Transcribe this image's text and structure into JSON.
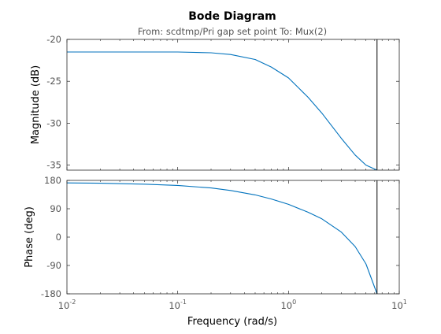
{
  "chart_data": {
    "type": "line",
    "title": "Bode Diagram",
    "subtitle": "From: scdtmp/Pri gap set point  To: Mux(2)",
    "xlabel": "Frequency  (rad/s)",
    "x_scale": "log",
    "xlim": [
      0.01,
      10
    ],
    "x_ticks": [
      {
        "base": "10",
        "exp": "-2",
        "value": 0.01
      },
      {
        "base": "10",
        "exp": "-1",
        "value": 0.1
      },
      {
        "base": "10",
        "exp": "0",
        "value": 1
      },
      {
        "base": "10",
        "exp": "1",
        "value": 10
      }
    ],
    "marker_line_x": 6.3,
    "line_color": "#0072bd",
    "axis_color": "#262626",
    "tick_label_color": "#555555",
    "panels": [
      {
        "id": "magnitude",
        "ylabel": "Magnitude (dB)",
        "ylim": [
          -35.6,
          -20
        ],
        "yticks": [
          -20,
          -25,
          -30,
          -35
        ],
        "ytick_labels": [
          "-20",
          "-25",
          "-30",
          "-35"
        ],
        "series": {
          "x": [
            0.01,
            0.02,
            0.05,
            0.1,
            0.2,
            0.3,
            0.5,
            0.7,
            1.0,
            1.5,
            2.0,
            3.0,
            4.0,
            5.0,
            6.3
          ],
          "y": [
            -21.5,
            -21.5,
            -21.5,
            -21.5,
            -21.6,
            -21.8,
            -22.4,
            -23.3,
            -24.6,
            -26.9,
            -28.8,
            -31.8,
            -33.8,
            -35.0,
            -35.6
          ]
        }
      },
      {
        "id": "phase",
        "ylabel": "Phase (deg)",
        "ylim": [
          -180,
          180
        ],
        "yticks": [
          180,
          90,
          0,
          -90,
          -180
        ],
        "ytick_labels": [
          "180",
          "90",
          "0",
          "-90",
          "-180"
        ],
        "series": {
          "x": [
            0.01,
            0.02,
            0.05,
            0.1,
            0.2,
            0.3,
            0.5,
            0.7,
            1.0,
            1.5,
            2.0,
            3.0,
            4.0,
            5.0,
            6.3
          ],
          "y": [
            172,
            171,
            168,
            164,
            156,
            148,
            134,
            121,
            104,
            79,
            58,
            16,
            -30,
            -85,
            -180
          ]
        }
      }
    ]
  }
}
